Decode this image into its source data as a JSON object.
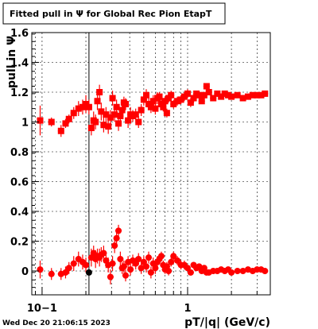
{
  "chart_data": {
    "type": "scatter",
    "title": "Fitted pull in  Ψ  for Global Rec Pion EtapT",
    "xlabel": "pT/|q| (GeV/c)",
    "ylabel": "pull in  Ψ",
    "x_scale": "log",
    "xlim": [
      0.085,
      3.7
    ],
    "ylim": [
      -0.16,
      1.6
    ],
    "x_ticks": [
      {
        "value": 0.1,
        "label": "10−1"
      },
      {
        "value": 1,
        "label": "1"
      }
    ],
    "y_ticks": [
      {
        "value": 0,
        "label": "0"
      },
      {
        "value": 0.2,
        "label": "0.2"
      },
      {
        "value": 0.4,
        "label": "0.4"
      },
      {
        "value": 0.6,
        "label": "0.6"
      },
      {
        "value": 0.8,
        "label": "0.8"
      },
      {
        "value": 1,
        "label": "1"
      },
      {
        "value": 1.2,
        "label": "1.2"
      },
      {
        "value": 1.4,
        "label": "1.4"
      },
      {
        "value": 1.6,
        "label": "1.6"
      }
    ],
    "grid": true,
    "marker_line_x": 0.21,
    "series": [
      {
        "marker": "square",
        "color": "#ff0000",
        "x": [
          0.097,
          0.116,
          0.135,
          0.145,
          0.153,
          0.165,
          0.178,
          0.19,
          0.2,
          0.21,
          0.218,
          0.226,
          0.233,
          0.24,
          0.248,
          0.255,
          0.265,
          0.275,
          0.285,
          0.295,
          0.305,
          0.315,
          0.325,
          0.335,
          0.345,
          0.355,
          0.365,
          0.375,
          0.39,
          0.405,
          0.42,
          0.44,
          0.46,
          0.48,
          0.5,
          0.52,
          0.54,
          0.56,
          0.58,
          0.6,
          0.62,
          0.64,
          0.66,
          0.68,
          0.7,
          0.72,
          0.74,
          0.77,
          0.8,
          0.85,
          0.9,
          0.95,
          1.0,
          1.05,
          1.1,
          1.15,
          1.2,
          1.25,
          1.3,
          1.35,
          1.4,
          1.5,
          1.6,
          1.7,
          1.8,
          1.9,
          2.0,
          2.2,
          2.4,
          2.6,
          2.8,
          3.0,
          3.2,
          3.4
        ],
        "y": [
          1.01,
          1.0,
          0.94,
          0.99,
          1.02,
          1.06,
          1.09,
          1.1,
          1.12,
          1.1,
          0.96,
          1.01,
          1.0,
          1.14,
          1.2,
          1.07,
          0.98,
          1.05,
          0.97,
          1.03,
          1.16,
          1.05,
          1.1,
          0.99,
          1.04,
          1.08,
          1.13,
          1.12,
          1.01,
          1.05,
          1.04,
          1.05,
          1.0,
          1.08,
          1.15,
          1.18,
          1.12,
          1.1,
          1.14,
          1.09,
          1.16,
          1.17,
          1.12,
          1.1,
          1.14,
          1.06,
          1.16,
          1.18,
          1.12,
          1.14,
          1.15,
          1.17,
          1.19,
          1.13,
          1.16,
          1.19,
          1.18,
          1.14,
          1.18,
          1.24,
          1.2,
          1.16,
          1.19,
          1.17,
          1.19,
          1.18,
          1.17,
          1.18,
          1.16,
          1.17,
          1.18,
          1.18,
          1.18,
          1.19
        ],
        "err": [
          0.1,
          0.03,
          0.04,
          0.03,
          0.03,
          0.04,
          0.05,
          0.05,
          0.06,
          0.05,
          0.05,
          0.06,
          0.05,
          0.06,
          0.05,
          0.06,
          0.05,
          0.05,
          0.05,
          0.05,
          0.05,
          0.05,
          0.05,
          0.05,
          0.05,
          0.05,
          0.04,
          0.04,
          0.05,
          0.05,
          0.04,
          0.04,
          0.04,
          0.04,
          0.04,
          0.04,
          0.04,
          0.04,
          0.04,
          0.04,
          0.04,
          0.03,
          0.03,
          0.03,
          0.03,
          0.03,
          0.03,
          0.03,
          0.03,
          0.03,
          0.03,
          0.03,
          0.03,
          0.03,
          0.03,
          0.02,
          0.02,
          0.02,
          0.02,
          0.02,
          0.02,
          0.02,
          0.02,
          0.02,
          0.02,
          0.02,
          0.02,
          0.02,
          0.02,
          0.02,
          0.02,
          0.02,
          0.02,
          0.02
        ]
      },
      {
        "marker": "circle",
        "color": "#ff0000",
        "x": [
          0.097,
          0.116,
          0.135,
          0.145,
          0.153,
          0.165,
          0.178,
          0.19,
          0.2,
          0.218,
          0.226,
          0.233,
          0.24,
          0.248,
          0.255,
          0.265,
          0.275,
          0.285,
          0.295,
          0.305,
          0.315,
          0.325,
          0.335,
          0.345,
          0.355,
          0.365,
          0.375,
          0.39,
          0.405,
          0.42,
          0.44,
          0.46,
          0.48,
          0.5,
          0.52,
          0.54,
          0.56,
          0.58,
          0.6,
          0.62,
          0.64,
          0.66,
          0.68,
          0.7,
          0.72,
          0.74,
          0.77,
          0.8,
          0.85,
          0.9,
          0.95,
          1.0,
          1.05,
          1.1,
          1.15,
          1.2,
          1.25,
          1.3,
          1.35,
          1.4,
          1.5,
          1.6,
          1.7,
          1.8,
          1.9,
          2.0,
          2.2,
          2.4,
          2.6,
          2.8,
          3.0,
          3.2,
          3.4
        ],
        "y": [
          0.01,
          -0.02,
          -0.02,
          -0.01,
          0.02,
          0.05,
          0.08,
          0.06,
          0.04,
          0.09,
          0.12,
          0.08,
          0.1,
          0.09,
          0.11,
          0.12,
          0.07,
          0.04,
          -0.04,
          0.05,
          0.17,
          0.22,
          0.27,
          0.08,
          0.02,
          0.03,
          -0.03,
          0.06,
          0.01,
          0.07,
          0.05,
          0.08,
          0.02,
          0.06,
          0.03,
          0.09,
          -0.01,
          0.05,
          0.02,
          0.06,
          0.08,
          0.1,
          0.04,
          0.01,
          0.03,
          0.0,
          0.06,
          0.1,
          0.07,
          0.04,
          0.04,
          0.02,
          -0.01,
          0.04,
          0.02,
          0.03,
          0.0,
          0.02,
          -0.01,
          -0.01,
          0.0,
          0.0,
          0.01,
          0.0,
          0.01,
          -0.01,
          0.0,
          0.0,
          0.01,
          0.0,
          0.01,
          0.01,
          0.0
        ],
        "err": [
          0.06,
          0.04,
          0.04,
          0.04,
          0.04,
          0.05,
          0.05,
          0.05,
          0.05,
          0.06,
          0.05,
          0.06,
          0.05,
          0.06,
          0.05,
          0.05,
          0.05,
          0.05,
          0.05,
          0.05,
          0.05,
          0.05,
          0.04,
          0.05,
          0.04,
          0.04,
          0.04,
          0.04,
          0.04,
          0.04,
          0.04,
          0.04,
          0.04,
          0.04,
          0.04,
          0.04,
          0.04,
          0.04,
          0.04,
          0.04,
          0.03,
          0.03,
          0.03,
          0.03,
          0.03,
          0.03,
          0.03,
          0.03,
          0.03,
          0.03,
          0.03,
          0.02,
          0.02,
          0.02,
          0.02,
          0.02,
          0.02,
          0.02,
          0.02,
          0.02,
          0.02,
          0.02,
          0.02,
          0.02,
          0.02,
          0.02,
          0.02,
          0.02,
          0.02,
          0.02,
          0.02,
          0.02,
          0.02
        ]
      },
      {
        "marker": "circle",
        "color": "#000000",
        "x": [
          0.21
        ],
        "y": [
          -0.01
        ],
        "err": [
          0
        ]
      }
    ]
  },
  "footer": {
    "timestamp": "Wed Dec 20 21:06:15 2023"
  }
}
